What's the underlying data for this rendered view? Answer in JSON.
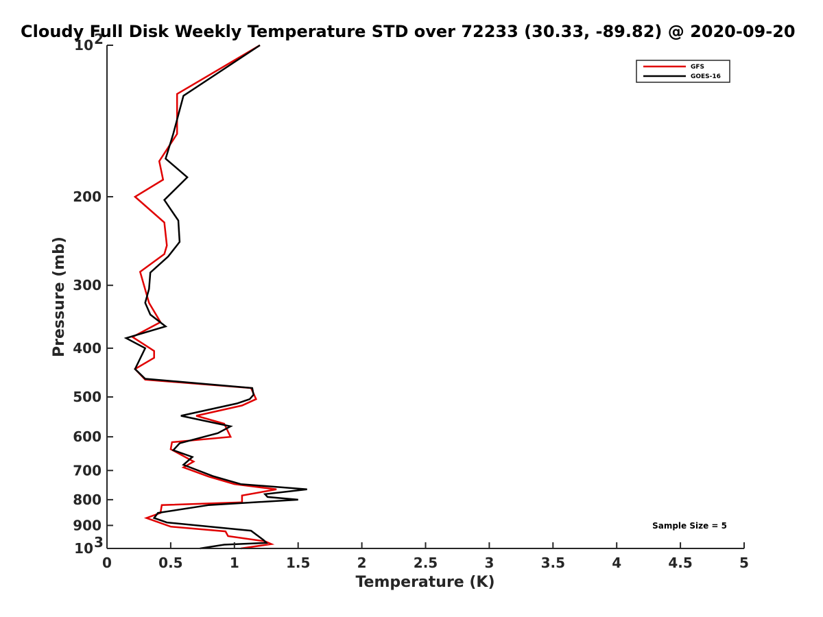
{
  "chart_data": {
    "type": "line",
    "title": "Cloudy Full Disk Weekly Temperature STD over 72233 (30.33, -89.82) @ 2020-09-20",
    "xlabel": "Temperature (K)",
    "ylabel": "Pressure (mb)",
    "xlim": [
      0,
      5
    ],
    "ylim": [
      100,
      1000
    ],
    "yscale": "log",
    "y_reversed": true,
    "x_ticks": [
      "0",
      "0.5",
      "1",
      "1.5",
      "2",
      "2.5",
      "3",
      "3.5",
      "4",
      "4.5",
      "5"
    ],
    "y_ticks": [
      {
        "value": 100,
        "base": "10",
        "exp": "2"
      },
      {
        "value": 200,
        "label": "200"
      },
      {
        "value": 300,
        "label": "300"
      },
      {
        "value": 400,
        "label": "400"
      },
      {
        "value": 500,
        "label": "500"
      },
      {
        "value": 600,
        "label": "600"
      },
      {
        "value": 700,
        "label": "700"
      },
      {
        "value": 800,
        "label": "800"
      },
      {
        "value": 900,
        "label": "900"
      },
      {
        "value": 1000,
        "base": "10",
        "exp": "3"
      }
    ],
    "legend_position": "top-right",
    "annotation": "Sample Size = 5",
    "series": [
      {
        "name": "GFS",
        "color": "#e00000",
        "points": [
          [
            1.2,
            100
          ],
          [
            0.55,
            125
          ],
          [
            0.55,
            150
          ],
          [
            0.41,
            170
          ],
          [
            0.44,
            185
          ],
          [
            0.22,
            200
          ],
          [
            0.45,
            225
          ],
          [
            0.47,
            250
          ],
          [
            0.45,
            260
          ],
          [
            0.26,
            282
          ],
          [
            0.33,
            325
          ],
          [
            0.42,
            355
          ],
          [
            0.2,
            380
          ],
          [
            0.37,
            405
          ],
          [
            0.37,
            418
          ],
          [
            0.22,
            440
          ],
          [
            0.3,
            462
          ],
          [
            1.13,
            480
          ],
          [
            1.17,
            505
          ],
          [
            1.06,
            520
          ],
          [
            0.7,
            545
          ],
          [
            0.92,
            565
          ],
          [
            0.97,
            600
          ],
          [
            0.51,
            615
          ],
          [
            0.5,
            635
          ],
          [
            0.68,
            672
          ],
          [
            0.6,
            690
          ],
          [
            0.8,
            720
          ],
          [
            1.0,
            745
          ],
          [
            1.33,
            763
          ],
          [
            1.06,
            785
          ],
          [
            1.06,
            810
          ],
          [
            0.43,
            820
          ],
          [
            0.42,
            850
          ],
          [
            0.31,
            870
          ],
          [
            0.5,
            905
          ],
          [
            0.93,
            925
          ],
          [
            0.95,
            945
          ],
          [
            1.24,
            968
          ],
          [
            1.29,
            980
          ],
          [
            1.05,
            1000
          ]
        ]
      },
      {
        "name": "GOES-16",
        "color": "#000000",
        "points": [
          [
            1.2,
            100
          ],
          [
            0.6,
            126
          ],
          [
            0.52,
            150
          ],
          [
            0.46,
            168
          ],
          [
            0.63,
            183
          ],
          [
            0.45,
            203
          ],
          [
            0.56,
            223
          ],
          [
            0.57,
            246
          ],
          [
            0.48,
            263
          ],
          [
            0.34,
            283
          ],
          [
            0.33,
            305
          ],
          [
            0.3,
            325
          ],
          [
            0.34,
            343
          ],
          [
            0.46,
            362
          ],
          [
            0.15,
            382
          ],
          [
            0.3,
            400
          ],
          [
            0.22,
            440
          ],
          [
            0.3,
            460
          ],
          [
            1.14,
            480
          ],
          [
            1.15,
            495
          ],
          [
            1.12,
            505
          ],
          [
            1.02,
            515
          ],
          [
            0.58,
            545
          ],
          [
            0.97,
            572
          ],
          [
            0.87,
            590
          ],
          [
            0.57,
            618
          ],
          [
            0.52,
            638
          ],
          [
            0.67,
            658
          ],
          [
            0.6,
            682
          ],
          [
            0.83,
            718
          ],
          [
            1.05,
            745
          ],
          [
            1.57,
            763
          ],
          [
            1.24,
            780
          ],
          [
            1.26,
            790
          ],
          [
            1.5,
            800
          ],
          [
            0.8,
            820
          ],
          [
            0.4,
            850
          ],
          [
            0.37,
            870
          ],
          [
            0.47,
            888
          ],
          [
            1.13,
            922
          ],
          [
            1.23,
            963
          ],
          [
            1.25,
            975
          ],
          [
            0.92,
            983
          ],
          [
            0.73,
            1000
          ]
        ]
      }
    ]
  }
}
